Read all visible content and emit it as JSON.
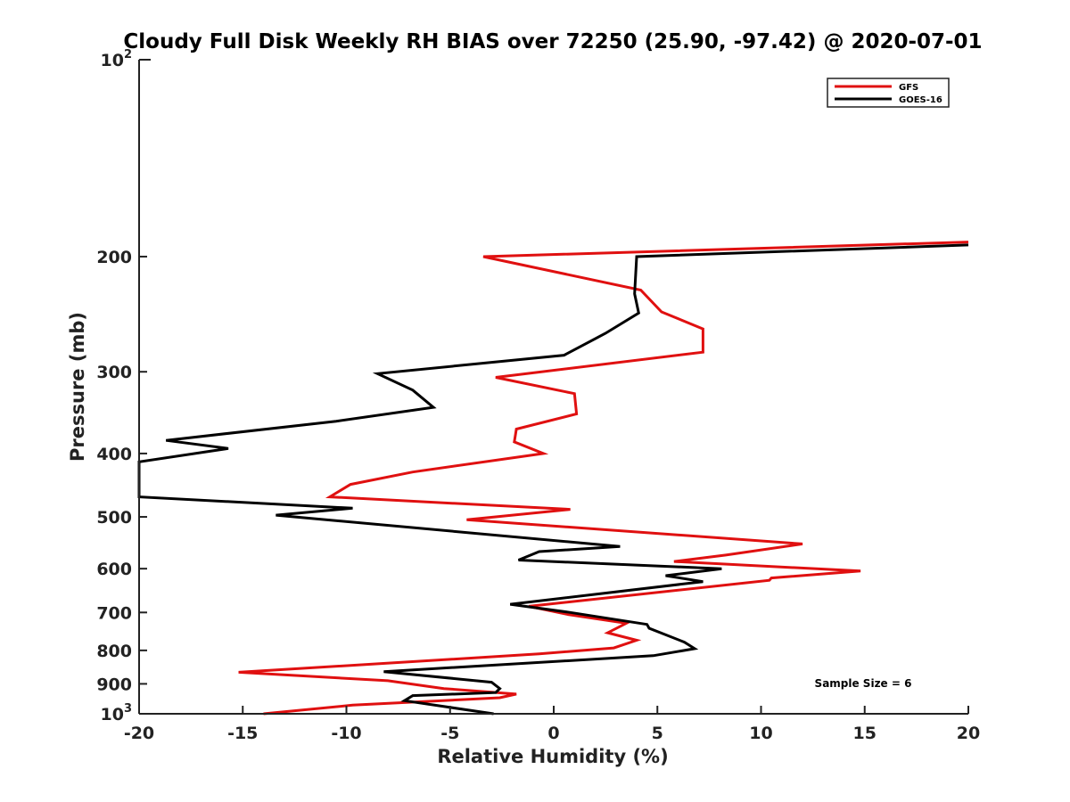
{
  "chart_data": {
    "type": "line",
    "title": "Cloudy Full Disk Weekly RH BIAS over 72250 (25.90, -97.42) @ 2020-07-01",
    "xlabel": "Relative Humidity (%)",
    "ylabel": "Pressure (mb)",
    "xlim": [
      -20,
      20
    ],
    "ylim": [
      100,
      1000
    ],
    "yscale": "log",
    "y_reversed": true,
    "xticks": [
      "-20",
      "-15",
      "-10",
      "-5",
      "0",
      "5",
      "10",
      "15",
      "20"
    ],
    "xtick_values": [
      -20,
      -15,
      -10,
      -5,
      0,
      5,
      10,
      15,
      20
    ],
    "yticks": [
      "200",
      "300",
      "400",
      "500",
      "600",
      "700",
      "800",
      "900"
    ],
    "ytick_values": [
      200,
      300,
      400,
      500,
      600,
      700,
      800,
      900
    ],
    "ytick_exp_labels": [
      {
        "base": "10",
        "exp": "2",
        "value": 100
      },
      {
        "base": "10",
        "exp": "3",
        "value": 1000
      }
    ],
    "grid": false,
    "legend_position": "top-right",
    "annotation": "Sample Size = 6",
    "series": [
      {
        "name": "GFS",
        "color": "#e01010",
        "x": [
          20,
          -3.4,
          4.2,
          5.2,
          7.2,
          7.2,
          -2.8,
          1.0,
          1.1,
          -1.8,
          -1.9,
          -0.5,
          -6.8,
          -9.8,
          -10.8,
          0.8,
          -4.2,
          12.0,
          8.3,
          5.8,
          14.8,
          10.5,
          10.4,
          -1.2,
          0.7,
          3.5,
          2.6,
          4.0,
          2.9,
          -0.7,
          -15.2,
          -8.0,
          -5.3,
          -1.8,
          -2.6,
          -9.7,
          -14.0
        ],
        "y": [
          190,
          200,
          225,
          243,
          258,
          280,
          306,
          324,
          348,
          367,
          384,
          400,
          427,
          446,
          466,
          487,
          505,
          550,
          572,
          585,
          605,
          620,
          625,
          685,
          705,
          727,
          752,
          772,
          793,
          810,
          864,
          890,
          915,
          933,
          945,
          970,
          1000
        ]
      },
      {
        "name": "GOES-16",
        "color": "#000000",
        "x": [
          20,
          4.0,
          3.9,
          4.1,
          2.5,
          0.5,
          -8.5,
          -6.8,
          -5.8,
          -10.5,
          -18.7,
          -15.7,
          -20,
          -20,
          -9.7,
          -13.4,
          3.2,
          -0.7,
          -1.7,
          8.1,
          5.4,
          7.2,
          -2.1,
          0.8,
          4.5,
          4.6,
          6.3,
          6.8,
          4.8,
          -8.2,
          -3.0,
          -2.6,
          -2.8,
          -6.8,
          -7.2,
          -2.9
        ],
        "y": [
          192,
          200,
          228,
          244,
          262,
          283,
          302,
          320,
          340,
          357,
          382,
          393,
          412,
          466,
          485,
          497,
          555,
          565,
          582,
          600,
          615,
          628,
          680,
          700,
          730,
          740,
          777,
          795,
          815,
          862,
          895,
          915,
          928,
          938,
          955,
          1000
        ]
      }
    ]
  }
}
